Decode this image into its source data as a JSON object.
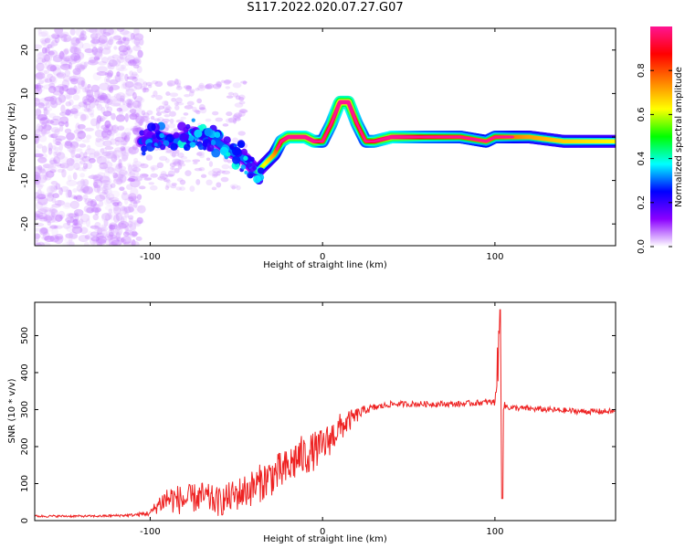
{
  "title": "S117.2022.020.07.27.G07",
  "chart_data": [
    {
      "type": "heatmap",
      "title": "S117.2022.020.07.27.G07",
      "xlabel": "Height of straight line (km)",
      "ylabel": "Frequency (Hz)",
      "xlim": [
        -167,
        170
      ],
      "ylim": [
        -25,
        25
      ],
      "x_ticks": [
        -100,
        0,
        100
      ],
      "x_tick_labels": [
        "-100",
        "0",
        "100"
      ],
      "y_ticks": [
        -20,
        -10,
        0,
        10,
        20
      ],
      "y_tick_labels": [
        "-20",
        "-10",
        "0",
        "10",
        "20"
      ],
      "colorbar": {
        "label": "Normalized spectral amplitude",
        "range": [
          0,
          1
        ],
        "ticks": [
          0.0,
          0.2,
          0.4,
          0.6,
          0.8
        ],
        "tick_labels": [
          "0.0",
          "0.2",
          "0.4",
          "0.6",
          "0.8"
        ],
        "colormap": [
          "#ffffff",
          "#8b00ff",
          "#0000ff",
          "#00ffff",
          "#00ff00",
          "#ffff00",
          "#ff8000",
          "#ff0000",
          "#ff1493"
        ]
      },
      "ridge": {
        "x": [
          -105,
          -95,
          -85,
          -75,
          -65,
          -55,
          -45,
          -38,
          -33,
          -28,
          -24,
          -20,
          -15,
          -10,
          -5,
          0,
          5,
          10,
          15,
          20,
          25,
          30,
          40,
          60,
          80,
          95,
          100,
          120,
          140,
          170
        ],
        "frequency": [
          -1,
          0,
          -1,
          1,
          0,
          -3,
          -5,
          -8,
          -6,
          -4,
          -1,
          0,
          0,
          0,
          -1,
          -1,
          3,
          8,
          8,
          3,
          -1,
          -1,
          0,
          0,
          0,
          -1,
          0,
          0,
          -1,
          -1
        ],
        "amplitude": [
          0.3,
          0.3,
          0.35,
          0.3,
          0.3,
          0.35,
          0.35,
          0.4,
          0.5,
          0.6,
          0.8,
          0.9,
          0.9,
          0.9,
          0.9,
          0.7,
          0.8,
          0.95,
          0.95,
          0.8,
          0.7,
          0.8,
          0.9,
          0.75,
          0.7,
          0.65,
          0.7,
          0.6,
          0.55,
          0.5
        ]
      }
    },
    {
      "type": "line",
      "xlabel": "Height of straight line (km)",
      "ylabel": "SNR (10 * v/v)",
      "xlim": [
        -167,
        170
      ],
      "ylim": [
        0,
        590
      ],
      "x_ticks": [
        -100,
        0,
        100
      ],
      "x_tick_labels": [
        "-100",
        "0",
        "100"
      ],
      "y_ticks": [
        0,
        100,
        200,
        300,
        400,
        500
      ],
      "y_tick_labels": [
        "0",
        "100",
        "200",
        "300",
        "400",
        "500"
      ],
      "color": "#ee2222",
      "series": [
        {
          "x": [
            -167,
            -150,
            -130,
            -110,
            -100,
            -95,
            -90,
            -80,
            -70,
            -60,
            -50,
            -40,
            -30,
            -20,
            -15,
            -10,
            0,
            10,
            20,
            25,
            30,
            40,
            60,
            80,
            95,
            100,
            102,
            103,
            104,
            105,
            110,
            130,
            150,
            170
          ],
          "y": [
            12,
            12,
            12,
            15,
            20,
            45,
            60,
            55,
            65,
            50,
            70,
            90,
            120,
            140,
            170,
            175,
            200,
            250,
            285,
            300,
            305,
            315,
            315,
            315,
            320,
            320,
            450,
            560,
            120,
            310,
            305,
            300,
            295,
            295
          ],
          "noise": [
            3,
            3,
            3,
            4,
            8,
            25,
            40,
            40,
            40,
            40,
            45,
            50,
            55,
            55,
            60,
            55,
            50,
            40,
            20,
            12,
            10,
            8,
            8,
            8,
            8,
            10,
            70,
            0,
            60,
            12,
            8,
            8,
            8,
            8
          ]
        }
      ]
    }
  ]
}
